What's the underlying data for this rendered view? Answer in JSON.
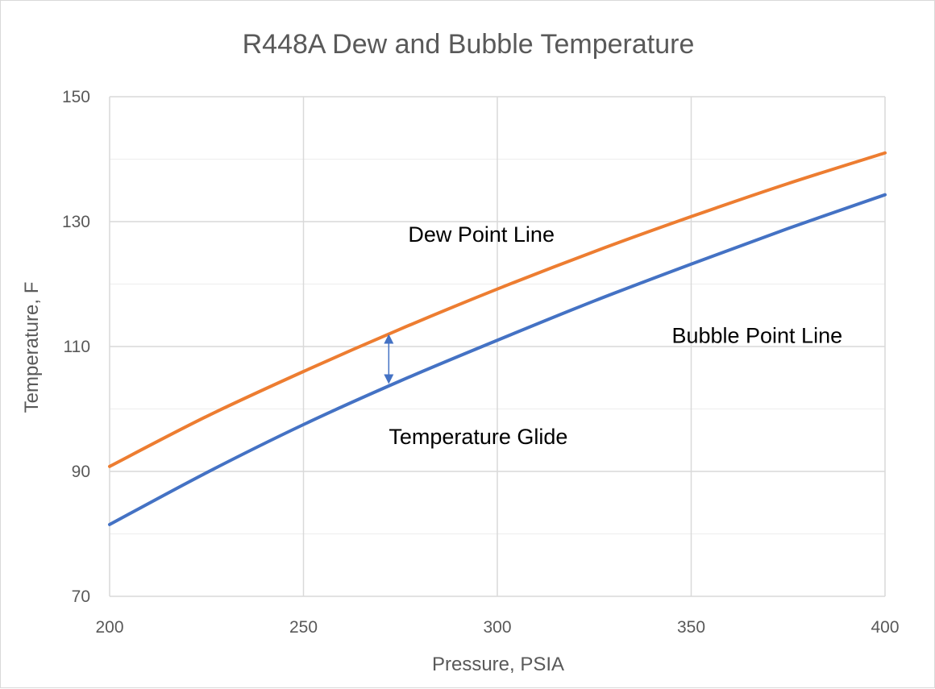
{
  "chart_data": {
    "type": "line",
    "title": "R448A Dew and Bubble Temperature",
    "xlabel": "Pressure, PSIA",
    "ylabel": "Temperature, F",
    "xlim": [
      200,
      400
    ],
    "ylim": [
      70,
      150
    ],
    "x_ticks": [
      "200",
      "250",
      "300",
      "350",
      "400"
    ],
    "y_ticks": [
      "70",
      "90",
      "110",
      "130",
      "150"
    ],
    "grid": true,
    "series": [
      {
        "name": "Dew Point Line",
        "color": "#ed7d31",
        "x": [
          200,
          225,
          250,
          275,
          300,
          325,
          350,
          375,
          400
        ],
        "y": [
          90.8,
          98.8,
          106.0,
          112.8,
          119.2,
          125.2,
          130.8,
          136.1,
          141.0
        ]
      },
      {
        "name": "Bubble Point Line",
        "color": "#4472c4",
        "x": [
          200,
          225,
          250,
          275,
          300,
          325,
          350,
          375,
          400
        ],
        "y": [
          81.5,
          89.8,
          97.5,
          104.5,
          111.0,
          117.3,
          123.2,
          128.9,
          134.3
        ]
      }
    ],
    "annotations": [
      {
        "text": "Dew Point Line",
        "x": 277,
        "y": 126.8
      },
      {
        "text": "Bubble Point Line",
        "x": 345,
        "y": 110.6
      },
      {
        "text": "Temperature Glide",
        "x": 272,
        "y": 94.4
      }
    ],
    "glide_arrow": {
      "x": 272,
      "y_from": 112.0,
      "y_to": 104.0,
      "color": "#4472c4"
    }
  }
}
